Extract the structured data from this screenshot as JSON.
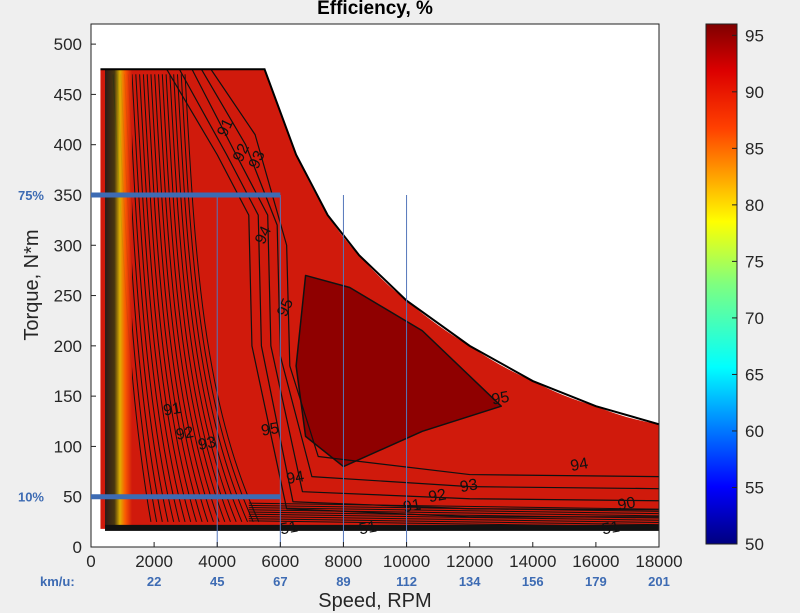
{
  "chart_data": {
    "type": "heatmap",
    "title": "Efficiency, %",
    "xlabel": "Speed, RPM",
    "ylabel": "Torque, N*m",
    "xlim": [
      0,
      18000
    ],
    "ylim": [
      0,
      520
    ],
    "x_ticks": [
      "0",
      "2000",
      "4000",
      "6000",
      "8000",
      "10000",
      "12000",
      "14000",
      "16000",
      "18000"
    ],
    "y_ticks": [
      "0",
      "50",
      "100",
      "150",
      "200",
      "250",
      "300",
      "350",
      "400",
      "450",
      "500"
    ],
    "colorbar": {
      "range": [
        50,
        96
      ],
      "ticks": [
        "50",
        "55",
        "60",
        "65",
        "70",
        "75",
        "80",
        "85",
        "90",
        "95"
      ],
      "colormap": "jet"
    },
    "max_torque_curve": [
      [
        300,
        475
      ],
      [
        5500,
        475
      ],
      [
        6500,
        390
      ],
      [
        7500,
        330
      ],
      [
        8500,
        290
      ],
      [
        10000,
        245
      ],
      [
        12000,
        200
      ],
      [
        14000,
        165
      ],
      [
        16000,
        140
      ],
      [
        18000,
        122
      ]
    ],
    "contour_labels": [
      {
        "text": "91",
        "x": 4400,
        "y": 415
      },
      {
        "text": "92",
        "x": 4900,
        "y": 390
      },
      {
        "text": "93",
        "x": 5400,
        "y": 383
      },
      {
        "text": "94",
        "x": 5600,
        "y": 308
      },
      {
        "text": "95",
        "x": 6300,
        "y": 236
      },
      {
        "text": "95",
        "x": 13000,
        "y": 143
      },
      {
        "text": "95",
        "x": 5700,
        "y": 112
      },
      {
        "text": "91",
        "x": 2600,
        "y": 132
      },
      {
        "text": "92",
        "x": 3000,
        "y": 108
      },
      {
        "text": "93",
        "x": 3700,
        "y": 98
      },
      {
        "text": "94",
        "x": 6500,
        "y": 64
      },
      {
        "text": "94",
        "x": 15500,
        "y": 77
      },
      {
        "text": "93",
        "x": 12000,
        "y": 56
      },
      {
        "text": "92",
        "x": 11000,
        "y": 46
      },
      {
        "text": "91",
        "x": 10200,
        "y": 36
      },
      {
        "text": "51",
        "x": 6300,
        "y": 14
      },
      {
        "text": "51",
        "x": 8800,
        "y": 14
      },
      {
        "text": "51",
        "x": 16500,
        "y": 14
      },
      {
        "text": "90",
        "x": 17000,
        "y": 38
      }
    ],
    "annotations": {
      "torque_levels": [
        {
          "label": "75%",
          "torque": 350,
          "speed_end": 6000
        },
        {
          "label": "10%",
          "torque": 50,
          "speed_end": 6000
        }
      ],
      "speed_ref_rpm": [
        4000,
        6000,
        8000,
        10000
      ],
      "kmh_prefix": "km/u:",
      "kmh_row": [
        {
          "rpm": 2000,
          "text": "22"
        },
        {
          "rpm": 4000,
          "text": "45"
        },
        {
          "rpm": 6000,
          "text": "67"
        },
        {
          "rpm": 8000,
          "text": "89"
        },
        {
          "rpm": 10000,
          "text": "112"
        },
        {
          "rpm": 12000,
          "text": "134"
        },
        {
          "rpm": 14000,
          "text": "156"
        },
        {
          "rpm": 16000,
          "text": "179"
        },
        {
          "rpm": 18000,
          "text": "201"
        }
      ]
    },
    "colors": {
      "field": "#d01a0c",
      "peak_region": "#8f0000",
      "contour": "#111111",
      "annotation": "#3d6bb3"
    }
  }
}
